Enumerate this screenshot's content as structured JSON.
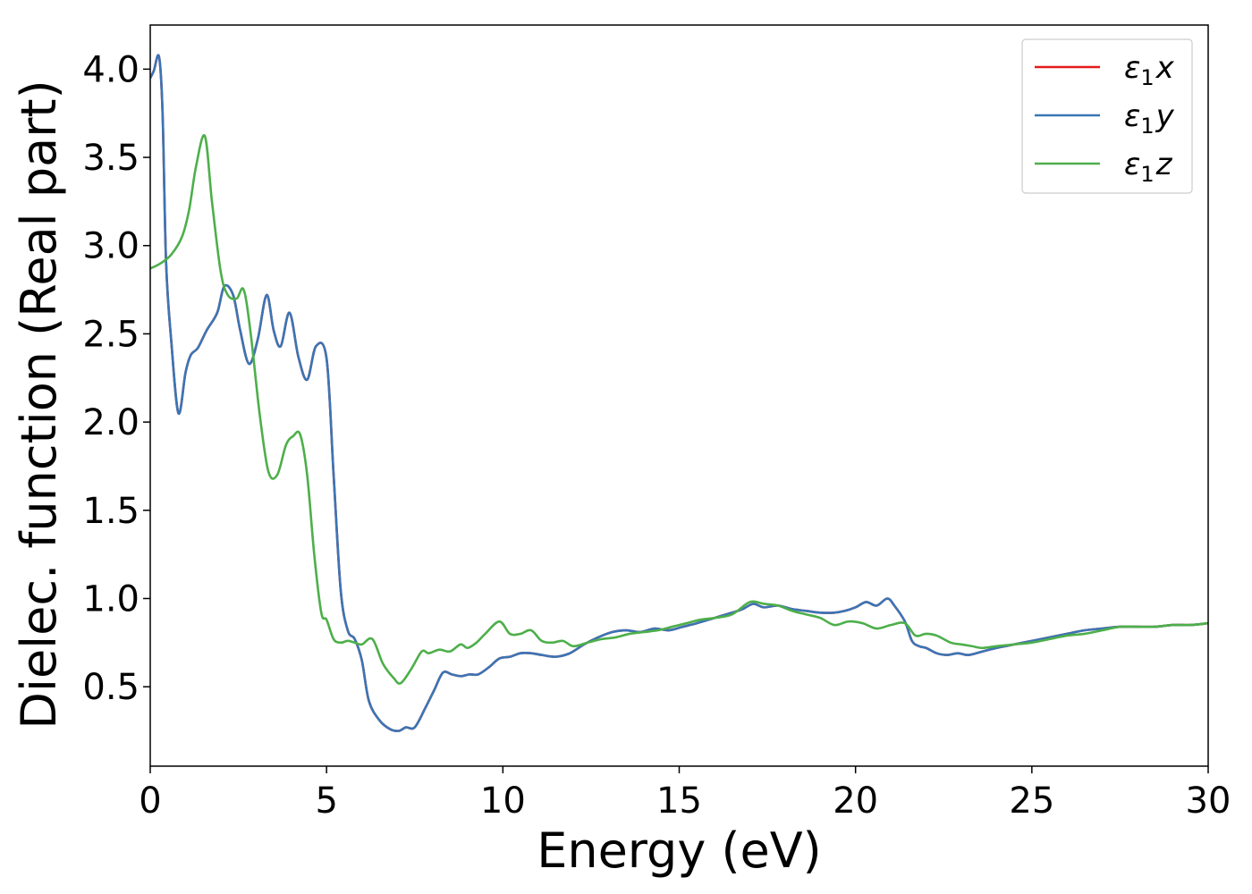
{
  "chart_data": {
    "type": "line",
    "xlabel": "Energy (eV)",
    "ylabel": "Dielec. function (Real part)",
    "xlim": [
      0,
      30
    ],
    "ylim": [
      0.05,
      4.25
    ],
    "xticks": [
      0,
      5,
      10,
      15,
      20,
      25,
      30
    ],
    "xtick_labels": [
      "0",
      "5",
      "10",
      "15",
      "20",
      "25",
      "30"
    ],
    "yticks": [
      0.5,
      1.0,
      1.5,
      2.0,
      2.5,
      3.0,
      3.5,
      4.0
    ],
    "ytick_labels": [
      "0.5",
      "1.0",
      "1.5",
      "2.0",
      "2.5",
      "3.0",
      "3.5",
      "4.0"
    ],
    "grid": false,
    "legend_position": "top-right",
    "series": [
      {
        "name": "ε1x",
        "legend_base": "ε",
        "legend_sub": "1",
        "legend_var": "x",
        "color": "#e41a1c",
        "x": [
          0,
          0.1,
          0.25,
          0.35,
          0.45,
          0.6,
          0.8,
          1.0,
          1.15,
          1.35,
          1.6,
          1.9,
          2.1,
          2.35,
          2.55,
          2.8,
          3.05,
          3.3,
          3.5,
          3.7,
          3.95,
          4.2,
          4.45,
          4.7,
          5.0,
          5.2,
          5.4,
          5.6,
          5.8,
          6.0,
          6.2,
          6.5,
          6.8,
          7.05,
          7.25,
          7.5,
          7.8,
          8.05,
          8.3,
          8.55,
          8.8,
          9.05,
          9.3,
          9.6,
          9.9,
          10.2,
          10.5,
          10.8,
          11.1,
          11.5,
          11.9,
          12.3,
          12.7,
          13.1,
          13.5,
          13.9,
          14.3,
          14.7,
          15.1,
          15.5,
          16.0,
          16.5,
          16.8,
          17.1,
          17.4,
          17.8,
          18.2,
          18.6,
          19.0,
          19.4,
          19.7,
          20.0,
          20.3,
          20.6,
          20.9,
          21.1,
          21.4,
          21.6,
          21.8,
          22.0,
          22.3,
          22.6,
          22.9,
          23.2,
          23.6,
          24.0,
          24.5,
          25.0,
          25.5,
          26.0,
          26.5,
          27.0,
          27.5,
          28.0,
          28.5,
          29.0,
          29.5,
          30.0
        ],
        "y": [
          3.95,
          3.99,
          4.07,
          3.75,
          2.9,
          2.45,
          2.05,
          2.28,
          2.38,
          2.42,
          2.52,
          2.62,
          2.77,
          2.72,
          2.52,
          2.33,
          2.47,
          2.72,
          2.52,
          2.43,
          2.62,
          2.37,
          2.24,
          2.43,
          2.36,
          1.7,
          1.05,
          0.82,
          0.77,
          0.65,
          0.42,
          0.31,
          0.26,
          0.25,
          0.27,
          0.27,
          0.38,
          0.48,
          0.58,
          0.57,
          0.56,
          0.57,
          0.57,
          0.61,
          0.66,
          0.67,
          0.69,
          0.69,
          0.68,
          0.67,
          0.69,
          0.74,
          0.78,
          0.81,
          0.82,
          0.81,
          0.83,
          0.82,
          0.84,
          0.86,
          0.89,
          0.92,
          0.94,
          0.97,
          0.95,
          0.96,
          0.94,
          0.93,
          0.92,
          0.92,
          0.93,
          0.95,
          0.98,
          0.96,
          1.0,
          0.96,
          0.87,
          0.76,
          0.73,
          0.72,
          0.69,
          0.68,
          0.69,
          0.68,
          0.7,
          0.72,
          0.74,
          0.76,
          0.78,
          0.8,
          0.82,
          0.83,
          0.84,
          0.84,
          0.84,
          0.85,
          0.85,
          0.86
        ]
      },
      {
        "name": "ε1y",
        "legend_base": "ε",
        "legend_sub": "1",
        "legend_var": "y",
        "color": "#3a75b5",
        "x": [
          0,
          0.1,
          0.25,
          0.35,
          0.45,
          0.6,
          0.8,
          1.0,
          1.15,
          1.35,
          1.6,
          1.9,
          2.1,
          2.35,
          2.55,
          2.8,
          3.05,
          3.3,
          3.5,
          3.7,
          3.95,
          4.2,
          4.45,
          4.7,
          5.0,
          5.2,
          5.4,
          5.6,
          5.8,
          6.0,
          6.2,
          6.5,
          6.8,
          7.05,
          7.25,
          7.5,
          7.8,
          8.05,
          8.3,
          8.55,
          8.8,
          9.05,
          9.3,
          9.6,
          9.9,
          10.2,
          10.5,
          10.8,
          11.1,
          11.5,
          11.9,
          12.3,
          12.7,
          13.1,
          13.5,
          13.9,
          14.3,
          14.7,
          15.1,
          15.5,
          16.0,
          16.5,
          16.8,
          17.1,
          17.4,
          17.8,
          18.2,
          18.6,
          19.0,
          19.4,
          19.7,
          20.0,
          20.3,
          20.6,
          20.9,
          21.1,
          21.4,
          21.6,
          21.8,
          22.0,
          22.3,
          22.6,
          22.9,
          23.2,
          23.6,
          24.0,
          24.5,
          25.0,
          25.5,
          26.0,
          26.5,
          27.0,
          27.5,
          28.0,
          28.5,
          29.0,
          29.5,
          30.0
        ],
        "y": [
          3.95,
          3.99,
          4.07,
          3.75,
          2.9,
          2.45,
          2.05,
          2.28,
          2.38,
          2.42,
          2.52,
          2.62,
          2.77,
          2.72,
          2.52,
          2.33,
          2.47,
          2.72,
          2.52,
          2.43,
          2.62,
          2.37,
          2.24,
          2.43,
          2.36,
          1.7,
          1.05,
          0.82,
          0.77,
          0.65,
          0.42,
          0.31,
          0.26,
          0.25,
          0.27,
          0.27,
          0.38,
          0.48,
          0.58,
          0.57,
          0.56,
          0.57,
          0.57,
          0.61,
          0.66,
          0.67,
          0.69,
          0.69,
          0.68,
          0.67,
          0.69,
          0.74,
          0.78,
          0.81,
          0.82,
          0.81,
          0.83,
          0.82,
          0.84,
          0.86,
          0.89,
          0.92,
          0.94,
          0.97,
          0.95,
          0.96,
          0.94,
          0.93,
          0.92,
          0.92,
          0.93,
          0.95,
          0.98,
          0.96,
          1.0,
          0.96,
          0.87,
          0.76,
          0.73,
          0.72,
          0.69,
          0.68,
          0.69,
          0.68,
          0.7,
          0.72,
          0.74,
          0.76,
          0.78,
          0.8,
          0.82,
          0.83,
          0.84,
          0.84,
          0.84,
          0.85,
          0.85,
          0.86
        ]
      },
      {
        "name": "ε1z",
        "legend_base": "ε",
        "legend_sub": "1",
        "legend_var": "z",
        "color": "#4daf4a",
        "x": [
          0,
          0.3,
          0.6,
          0.9,
          1.1,
          1.3,
          1.55,
          1.75,
          2.0,
          2.2,
          2.45,
          2.65,
          2.85,
          3.1,
          3.35,
          3.6,
          3.85,
          4.05,
          4.25,
          4.45,
          4.65,
          4.85,
          5.0,
          5.2,
          5.4,
          5.6,
          5.8,
          6.0,
          6.3,
          6.6,
          6.9,
          7.1,
          7.4,
          7.7,
          7.9,
          8.2,
          8.5,
          8.8,
          9.0,
          9.25,
          9.5,
          9.9,
          10.2,
          10.5,
          10.8,
          11.1,
          11.4,
          11.7,
          12.0,
          12.4,
          12.8,
          13.2,
          13.6,
          14.0,
          14.4,
          14.8,
          15.2,
          15.6,
          16.0,
          16.5,
          17.0,
          17.4,
          17.8,
          18.2,
          18.6,
          19.0,
          19.4,
          19.8,
          20.2,
          20.6,
          21.0,
          21.4,
          21.7,
          22.0,
          22.3,
          22.7,
          23.0,
          23.3,
          23.6,
          24.0,
          24.5,
          25.0,
          25.5,
          26.0,
          26.5,
          27.0,
          27.5,
          28.0,
          28.5,
          29.0,
          29.5,
          30.0
        ],
        "y": [
          2.87,
          2.9,
          2.95,
          3.05,
          3.2,
          3.45,
          3.62,
          3.25,
          2.85,
          2.72,
          2.7,
          2.75,
          2.5,
          2.05,
          1.72,
          1.7,
          1.87,
          1.92,
          1.93,
          1.7,
          1.25,
          0.92,
          0.88,
          0.77,
          0.75,
          0.76,
          0.75,
          0.74,
          0.77,
          0.63,
          0.55,
          0.52,
          0.6,
          0.7,
          0.69,
          0.71,
          0.7,
          0.74,
          0.72,
          0.75,
          0.8,
          0.87,
          0.8,
          0.8,
          0.82,
          0.76,
          0.75,
          0.76,
          0.73,
          0.75,
          0.77,
          0.78,
          0.8,
          0.81,
          0.82,
          0.84,
          0.86,
          0.88,
          0.89,
          0.91,
          0.98,
          0.97,
          0.96,
          0.93,
          0.91,
          0.89,
          0.85,
          0.87,
          0.86,
          0.83,
          0.85,
          0.86,
          0.79,
          0.8,
          0.79,
          0.75,
          0.74,
          0.73,
          0.72,
          0.73,
          0.74,
          0.75,
          0.77,
          0.79,
          0.8,
          0.82,
          0.84,
          0.84,
          0.84,
          0.85,
          0.85,
          0.86
        ]
      }
    ]
  }
}
